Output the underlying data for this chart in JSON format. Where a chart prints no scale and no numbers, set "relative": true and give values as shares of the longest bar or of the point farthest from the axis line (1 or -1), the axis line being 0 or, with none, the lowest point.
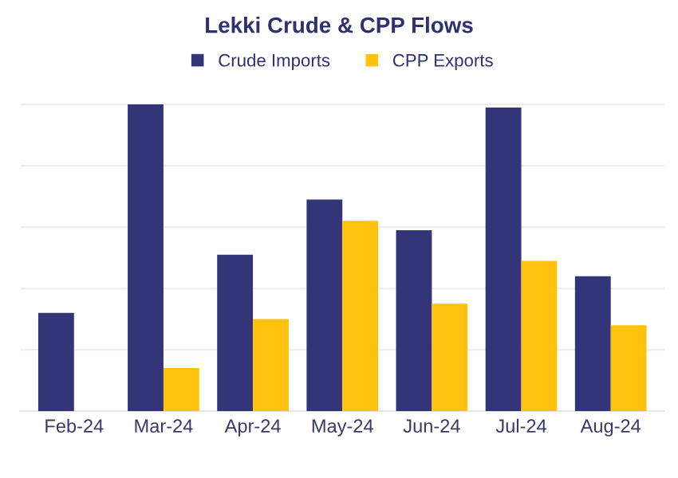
{
  "chart_data": {
    "type": "bar",
    "title": "Lekki Crude & CPP Flows",
    "categories": [
      "Feb-24",
      "Mar-24",
      "Apr-24",
      "May-24",
      "Jun-24",
      "Jul-24",
      "Aug-24"
    ],
    "series": [
      {
        "name": "Crude Imports",
        "color": "#343579",
        "values": [
          0.32,
          1,
          0.51,
          0.69,
          0.59,
          0.99,
          0.44
        ]
      },
      {
        "name": "CPP Exports",
        "color": "#ffc20e",
        "values": [
          0,
          0.14,
          0.3,
          0.62,
          0.35,
          0.49,
          0.28
        ]
      }
    ],
    "relative": true,
    "grid": "y",
    "legend": "top"
  }
}
